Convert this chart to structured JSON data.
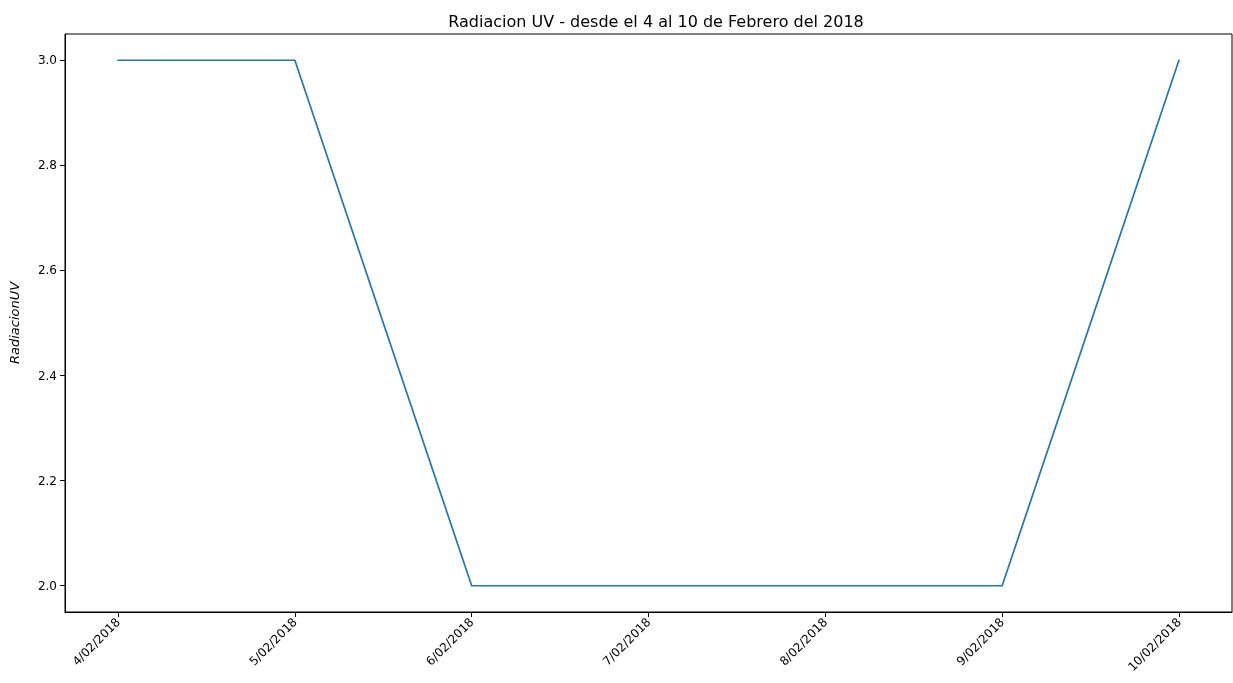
{
  "chart_data": {
    "type": "line",
    "title": "Radiacion UV - desde el 4 al 10 de Febrero del 2018",
    "ylabel": "RadiacionUV",
    "categories": [
      "4/02/2018",
      "5/02/2018",
      "6/02/2018",
      "7/02/2018",
      "8/02/2018",
      "9/02/2018",
      "10/02/2018"
    ],
    "series": [
      {
        "color": "#1f77b4",
        "values": [
          3,
          3,
          2,
          2,
          2,
          2,
          3
        ]
      }
    ],
    "ylim": [
      1.95,
      3.05
    ],
    "yticks": [
      {
        "value": 2,
        "label": "2.0"
      },
      {
        "value": 2.2,
        "label": "2.2"
      },
      {
        "value": 2.4,
        "label": "2.4"
      },
      {
        "value": 2.6,
        "label": "2.6"
      },
      {
        "value": 2.8,
        "label": "2.8"
      },
      {
        "value": 3,
        "label": "3.0"
      }
    ],
    "grid": false,
    "marker": "none",
    "line_style": "solid"
  }
}
